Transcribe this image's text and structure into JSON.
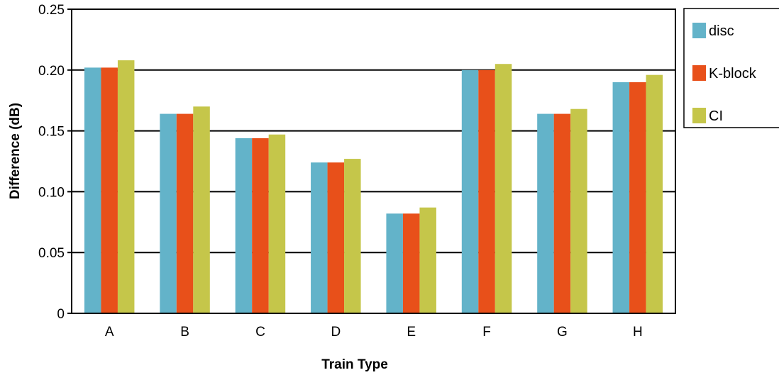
{
  "colors": {
    "disc": "#63b3c9",
    "K-block": "#e8501a",
    "CI": "#c5c64a",
    "grid": "#000000",
    "background": "#ffffff"
  },
  "chart_data": {
    "type": "bar",
    "title": "",
    "xlabel": "Train Type",
    "ylabel": "Difference (dB)",
    "ylim": [
      0,
      0.25
    ],
    "yticks": [
      0,
      0.05,
      0.1,
      0.15,
      0.2,
      0.25
    ],
    "ytick_labels": [
      "0",
      "0.05",
      "0.10",
      "0.15",
      "0.20",
      "0.25"
    ],
    "categories": [
      "A",
      "B",
      "C",
      "D",
      "E",
      "F",
      "G",
      "H"
    ],
    "series": [
      {
        "name": "disc",
        "values": [
          0.202,
          0.164,
          0.144,
          0.124,
          0.082,
          0.2,
          0.164,
          0.19
        ]
      },
      {
        "name": "K-block",
        "values": [
          0.202,
          0.164,
          0.144,
          0.124,
          0.082,
          0.2,
          0.164,
          0.19
        ]
      },
      {
        "name": "CI",
        "values": [
          0.208,
          0.17,
          0.147,
          0.127,
          0.087,
          0.205,
          0.168,
          0.196
        ]
      }
    ],
    "grid": "horizontal",
    "legend_position": "right"
  }
}
